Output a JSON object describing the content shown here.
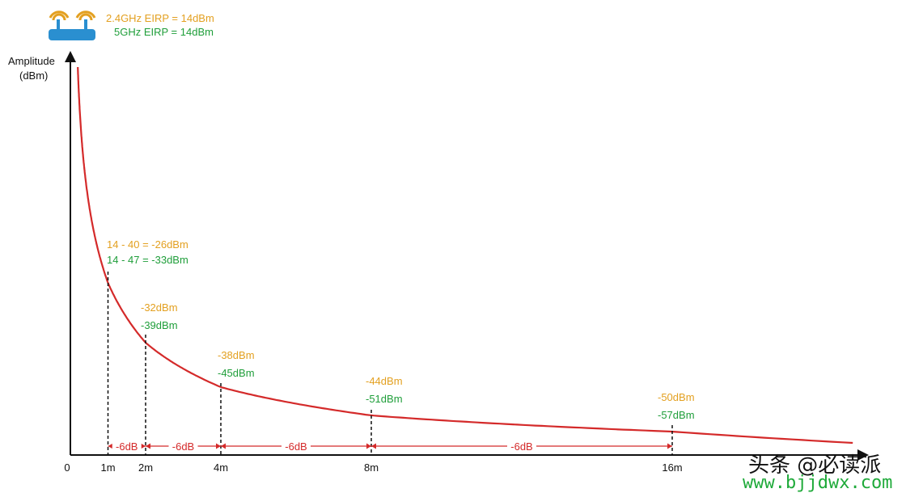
{
  "header": {
    "eirp_24": "2.4GHz EIRP = 14dBm",
    "eirp_5": "5GHz EIRP = 14dBm"
  },
  "colors": {
    "orange": "#e3a020",
    "green": "#1f9e3a",
    "red": "#d42a2a",
    "axis": "#111111"
  },
  "icons": {
    "router": "wifi-router-icon"
  },
  "chart_data": {
    "type": "line",
    "ylabel_line1": "Amplitude",
    "ylabel_line2": "(dBm)",
    "x_ticks": [
      "0",
      "1m",
      "2m",
      "4m",
      "8m",
      "16m"
    ],
    "x_tick_values": [
      0,
      1,
      2,
      4,
      8,
      16
    ],
    "series": [
      {
        "values": [
          {
            "distance": 1,
            "dbm_24": -26,
            "dbm_5": -33
          },
          {
            "distance": 2,
            "dbm_24": -32,
            "dbm_5": -39
          },
          {
            "distance": 4,
            "dbm_24": -38,
            "dbm_5": -45
          },
          {
            "distance": 8,
            "dbm_24": -44,
            "dbm_5": -51
          },
          {
            "distance": 16,
            "dbm_24": -50,
            "dbm_5": -57
          }
        ]
      }
    ],
    "point_labels": [
      {
        "orange": "14 - 40 = -26dBm",
        "green": "14 - 47 = -33dBm"
      },
      {
        "orange": "-32dBm",
        "green": "-39dBm"
      },
      {
        "orange": "-38dBm",
        "green": "-45dBm"
      },
      {
        "orange": "-44dBm",
        "green": "-51dBm"
      },
      {
        "orange": "-50dBm",
        "green": "-57dBm"
      }
    ],
    "interval_labels": [
      "-6dB",
      "-6dB",
      "-6dB",
      "-6dB"
    ]
  },
  "watermark": {
    "line1": "头条 @必读派",
    "line2": "www.bjjdwx.com"
  }
}
